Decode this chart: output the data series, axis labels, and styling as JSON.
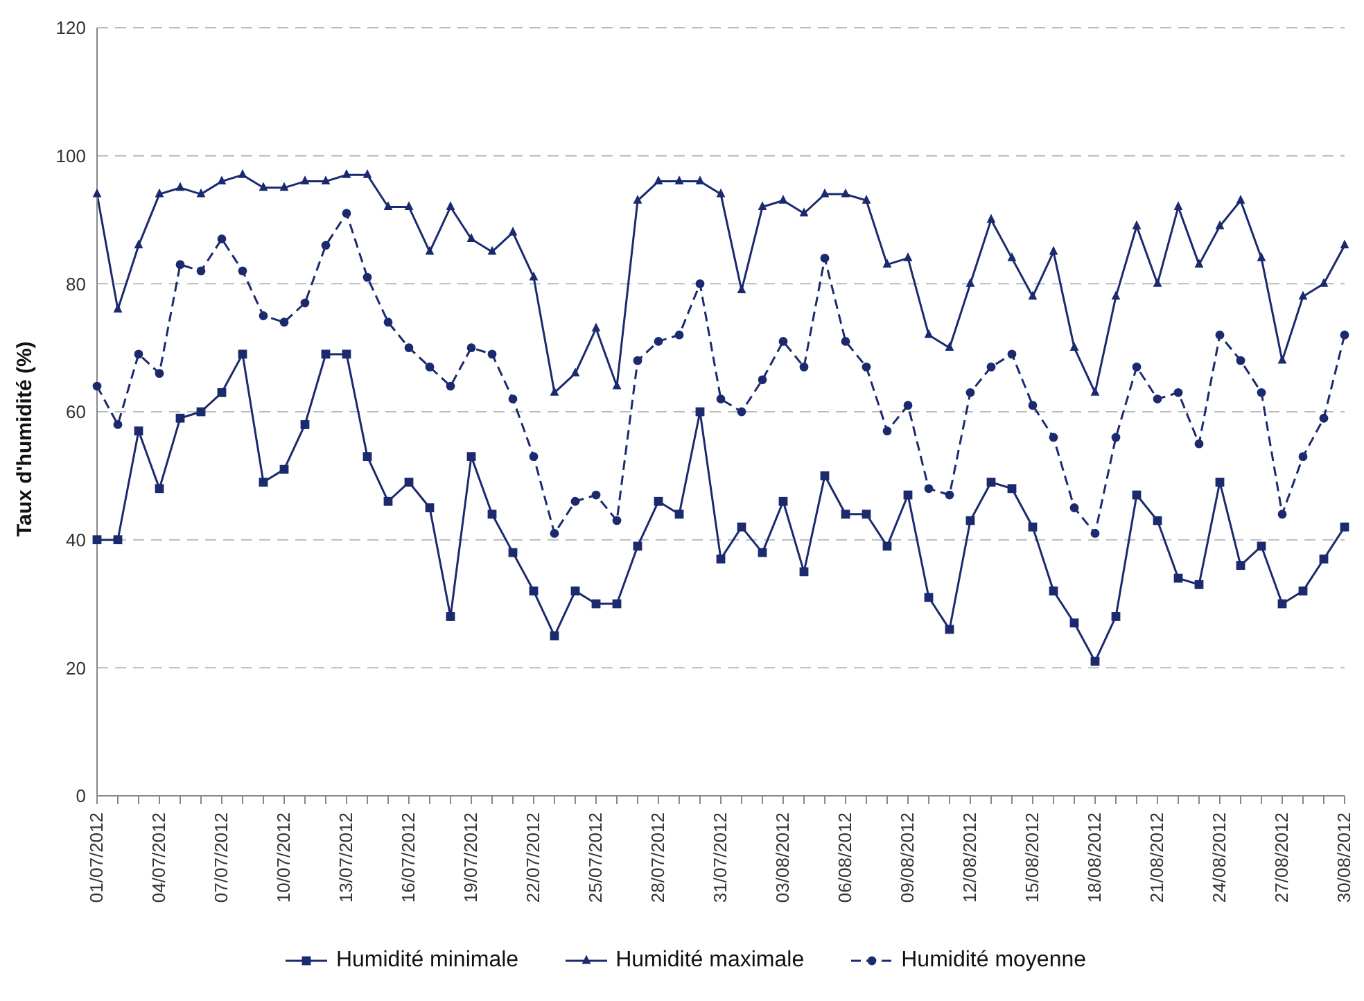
{
  "chart_data": {
    "type": "line",
    "ylabel": "Taux d'humidité (%)",
    "categories": [
      "01/07/2012",
      null,
      null,
      "04/07/2012",
      null,
      null,
      "07/07/2012",
      null,
      null,
      "10/07/2012",
      null,
      null,
      "13/07/2012",
      null,
      null,
      "16/07/2012",
      null,
      null,
      "19/07/2012",
      null,
      null,
      "22/07/2012",
      null,
      null,
      "25/07/2012",
      null,
      null,
      "28/07/2012",
      null,
      null,
      "31/07/2012",
      null,
      null,
      "03/08/2012",
      null,
      null,
      "06/08/2012",
      null,
      null,
      "09/08/2012",
      null,
      null,
      "12/08/2012",
      null,
      null,
      "15/08/2012",
      null,
      null,
      "18/08/2012",
      null,
      null,
      "21/08/2012",
      null,
      null,
      "24/08/2012",
      null,
      null,
      "27/08/2012",
      null,
      null,
      "30/08/2012"
    ],
    "series": [
      {
        "name": "Humidité minimale",
        "color": "#1b2a6e",
        "marker": "square",
        "line_style": "solid",
        "values": [
          40,
          40,
          57,
          48,
          59,
          60,
          63,
          69,
          49,
          51,
          58,
          69,
          69,
          53,
          46,
          49,
          45,
          28,
          53,
          44,
          38,
          32,
          25,
          32,
          30,
          30,
          39,
          46,
          44,
          60,
          37,
          42,
          38,
          46,
          35,
          50,
          44,
          44,
          39,
          47,
          31,
          26,
          43,
          49,
          48,
          42,
          32,
          27,
          21,
          28,
          47,
          43,
          34,
          33,
          49,
          36,
          39,
          30,
          32,
          37,
          42
        ]
      },
      {
        "name": "Humidité maximale",
        "color": "#1b2a6e",
        "marker": "triangle",
        "line_style": "solid",
        "values": [
          94,
          76,
          86,
          94,
          95,
          94,
          96,
          97,
          95,
          95,
          96,
          96,
          97,
          97,
          92,
          92,
          85,
          92,
          87,
          85,
          88,
          81,
          63,
          66,
          73,
          64,
          93,
          96,
          96,
          96,
          94,
          79,
          92,
          93,
          91,
          94,
          94,
          93,
          83,
          84,
          72,
          70,
          80,
          90,
          84,
          78,
          85,
          70,
          63,
          78,
          89,
          80,
          92,
          83,
          89,
          93,
          84,
          68,
          78,
          80,
          86
        ]
      },
      {
        "name": "Humidité moyenne",
        "color": "#1b2a6e",
        "marker": "circle",
        "line_style": "dashed",
        "values": [
          64,
          58,
          69,
          66,
          83,
          82,
          87,
          82,
          75,
          74,
          77,
          86,
          91,
          81,
          74,
          70,
          67,
          64,
          70,
          69,
          62,
          53,
          41,
          46,
          47,
          43,
          68,
          71,
          72,
          80,
          62,
          60,
          65,
          71,
          67,
          84,
          71,
          67,
          57,
          61,
          48,
          47,
          63,
          67,
          69,
          61,
          56,
          45,
          41,
          56,
          67,
          62,
          63,
          55,
          72,
          68,
          63,
          44,
          53,
          59,
          72
        ]
      }
    ],
    "ylim": [
      0,
      120
    ],
    "yticks": [
      0,
      20,
      40,
      60,
      80,
      100,
      120
    ],
    "grid": "y",
    "legend": "bottom"
  }
}
